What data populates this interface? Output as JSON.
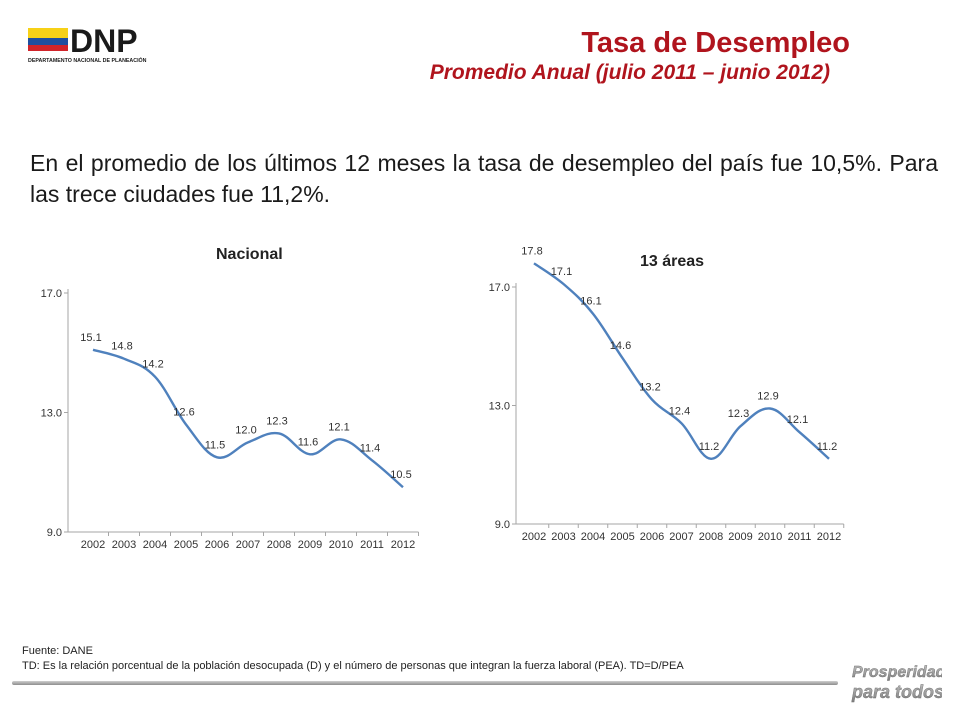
{
  "header": {
    "logo_text": "DNP",
    "logo_subtext": "DEPARTAMENTO NACIONAL DE PLANEACIÓN",
    "title": "Tasa de Desempleo",
    "subtitle": "Promedio Anual (julio 2011 – junio 2012)"
  },
  "intro_text": "En el promedio de los últimos 12 meses la tasa de desempleo del país fue 10,5%. Para las trece ciudades fue 11,2%.",
  "chart_data": [
    {
      "type": "line",
      "title": "Nacional",
      "categories": [
        "2002",
        "2003",
        "2004",
        "2005",
        "2006",
        "2007",
        "2008",
        "2009",
        "2010",
        "2011",
        "2012"
      ],
      "values": [
        15.1,
        14.8,
        14.2,
        12.6,
        11.5,
        12.0,
        12.3,
        11.6,
        12.1,
        11.4,
        10.5
      ],
      "data_labels": [
        "15.1",
        "14.8",
        "14.2",
        "12.6",
        "11.5",
        "12.0",
        "12.3",
        "11.6",
        "12.1",
        "11.4",
        "10.5"
      ],
      "yticks": [
        "9.0",
        "13.0",
        "17.0"
      ],
      "ylim": [
        9,
        17
      ],
      "color": "#4f81bd"
    },
    {
      "type": "line",
      "title": "13 áreas",
      "categories": [
        "2002",
        "2003",
        "2004",
        "2005",
        "2006",
        "2007",
        "2008",
        "2009",
        "2010",
        "2011",
        "2012"
      ],
      "values": [
        17.8,
        17.1,
        16.1,
        14.6,
        13.2,
        12.4,
        11.2,
        12.3,
        12.9,
        12.1,
        11.2
      ],
      "data_labels": [
        "17.8",
        "17.1",
        "16.1",
        "14.6",
        "13.2",
        "12.4",
        "11.2",
        "12.3",
        "12.9",
        "12.1",
        "11.2"
      ],
      "yticks": [
        "9.0",
        "13.0",
        "17.0"
      ],
      "ylim": [
        9,
        17
      ],
      "color": "#4f81bd"
    }
  ],
  "footer": {
    "source": "Fuente: DANE",
    "note": "TD:  Es la relación porcentual de la población desocupada (D) y el número de personas que integran la fuerza laboral (PEA). TD=D/PEA"
  },
  "brand": {
    "line1": "Prosperidad",
    "line2": "para todos"
  },
  "colors": {
    "title": "#b0141d",
    "line": "#4f81bd",
    "flag_yellow": "#f7d117",
    "flag_blue": "#1f4fa0",
    "flag_red": "#d1242a"
  }
}
